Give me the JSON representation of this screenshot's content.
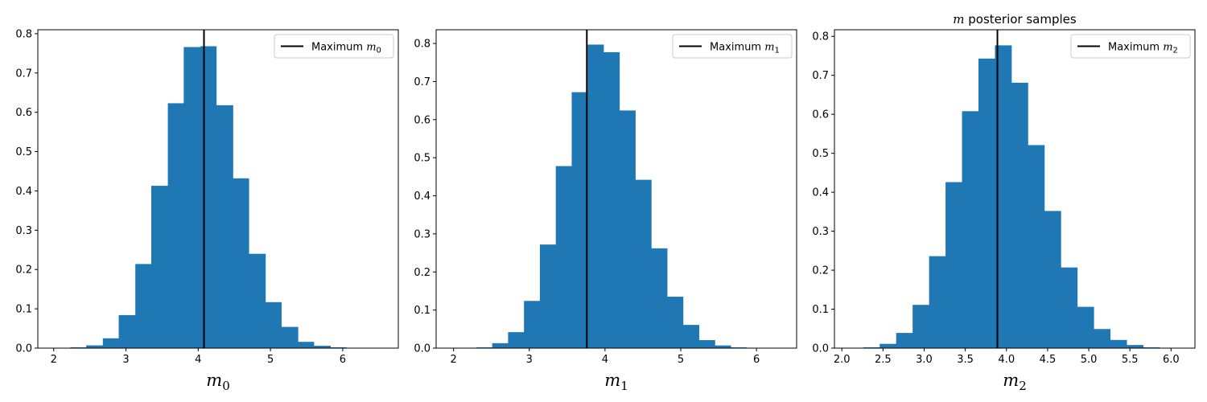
{
  "chart_data": [
    {
      "type": "bar",
      "subtype": "histogram",
      "title": "",
      "xlabel": {
        "var": "m",
        "sub": "0"
      },
      "ylabel": "",
      "xlim": [
        1.78,
        6.77
      ],
      "ylim": [
        0,
        0.81
      ],
      "xticks": [
        2,
        3,
        4,
        5,
        6
      ],
      "yticks": [
        0.0,
        0.1,
        0.2,
        0.3,
        0.4,
        0.5,
        0.6,
        0.7,
        0.8
      ],
      "bin_edges": [
        2.23,
        2.45,
        2.68,
        2.9,
        3.13,
        3.35,
        3.58,
        3.8,
        4.03,
        4.25,
        4.48,
        4.7,
        4.93,
        5.15,
        5.38,
        5.6,
        5.83,
        6.05,
        6.28
      ],
      "values": [
        0.002,
        0.007,
        0.025,
        0.084,
        0.214,
        0.413,
        0.623,
        0.766,
        0.768,
        0.618,
        0.432,
        0.24,
        0.117,
        0.054,
        0.016,
        0.006,
        0.002,
        0.001
      ],
      "color": "#1f77b4",
      "vline": {
        "x": 4.08,
        "color": "#000000"
      },
      "legend": {
        "position": "upper right",
        "label_prefix": "Maximum",
        "var": "m",
        "sub": "0"
      }
    },
    {
      "type": "bar",
      "subtype": "histogram",
      "title": "",
      "xlabel": {
        "var": "m",
        "sub": "1"
      },
      "ylabel": "",
      "xlim": [
        1.77,
        6.53
      ],
      "ylim": [
        0,
        0.836
      ],
      "xticks": [
        2,
        3,
        4,
        5,
        6
      ],
      "yticks": [
        0.0,
        0.1,
        0.2,
        0.3,
        0.4,
        0.5,
        0.6,
        0.7,
        0.8
      ],
      "bin_edges": [
        2.3,
        2.51,
        2.72,
        2.93,
        3.14,
        3.35,
        3.56,
        3.77,
        3.98,
        4.19,
        4.4,
        4.61,
        4.82,
        5.03,
        5.24,
        5.45,
        5.66,
        5.87,
        6.08
      ],
      "values": [
        0.002,
        0.013,
        0.042,
        0.124,
        0.272,
        0.478,
        0.672,
        0.797,
        0.777,
        0.624,
        0.442,
        0.262,
        0.135,
        0.061,
        0.021,
        0.007,
        0.002,
        0.001
      ],
      "color": "#1f77b4",
      "vline": {
        "x": 3.76,
        "color": "#000000"
      },
      "legend": {
        "position": "upper right",
        "label_prefix": "Maximum",
        "var": "m",
        "sub": "1"
      }
    },
    {
      "type": "bar",
      "subtype": "histogram",
      "title": {
        "var": "m",
        "text": "posterior samples"
      },
      "xlabel": {
        "var": "m",
        "sub": "2"
      },
      "ylabel": "",
      "xlim": [
        1.91,
        6.29
      ],
      "ylim": [
        0,
        0.817
      ],
      "xticks": [
        2.0,
        2.5,
        3.0,
        3.5,
        4.0,
        4.5,
        5.0,
        5.5,
        6.0
      ],
      "yticks": [
        0.0,
        0.1,
        0.2,
        0.3,
        0.4,
        0.5,
        0.6,
        0.7,
        0.8
      ],
      "bin_edges": [
        2.26,
        2.46,
        2.66,
        2.86,
        3.06,
        3.26,
        3.46,
        3.66,
        3.86,
        4.06,
        4.26,
        4.46,
        4.66,
        4.86,
        5.06,
        5.26,
        5.46,
        5.66,
        5.86
      ],
      "values": [
        0.002,
        0.011,
        0.039,
        0.111,
        0.236,
        0.426,
        0.608,
        0.743,
        0.777,
        0.681,
        0.521,
        0.352,
        0.207,
        0.106,
        0.049,
        0.021,
        0.008,
        0.002
      ],
      "color": "#1f77b4",
      "vline": {
        "x": 3.89,
        "color": "#000000"
      },
      "legend": {
        "position": "upper right",
        "label_prefix": "Maximum",
        "var": "m",
        "sub": "2"
      }
    }
  ]
}
